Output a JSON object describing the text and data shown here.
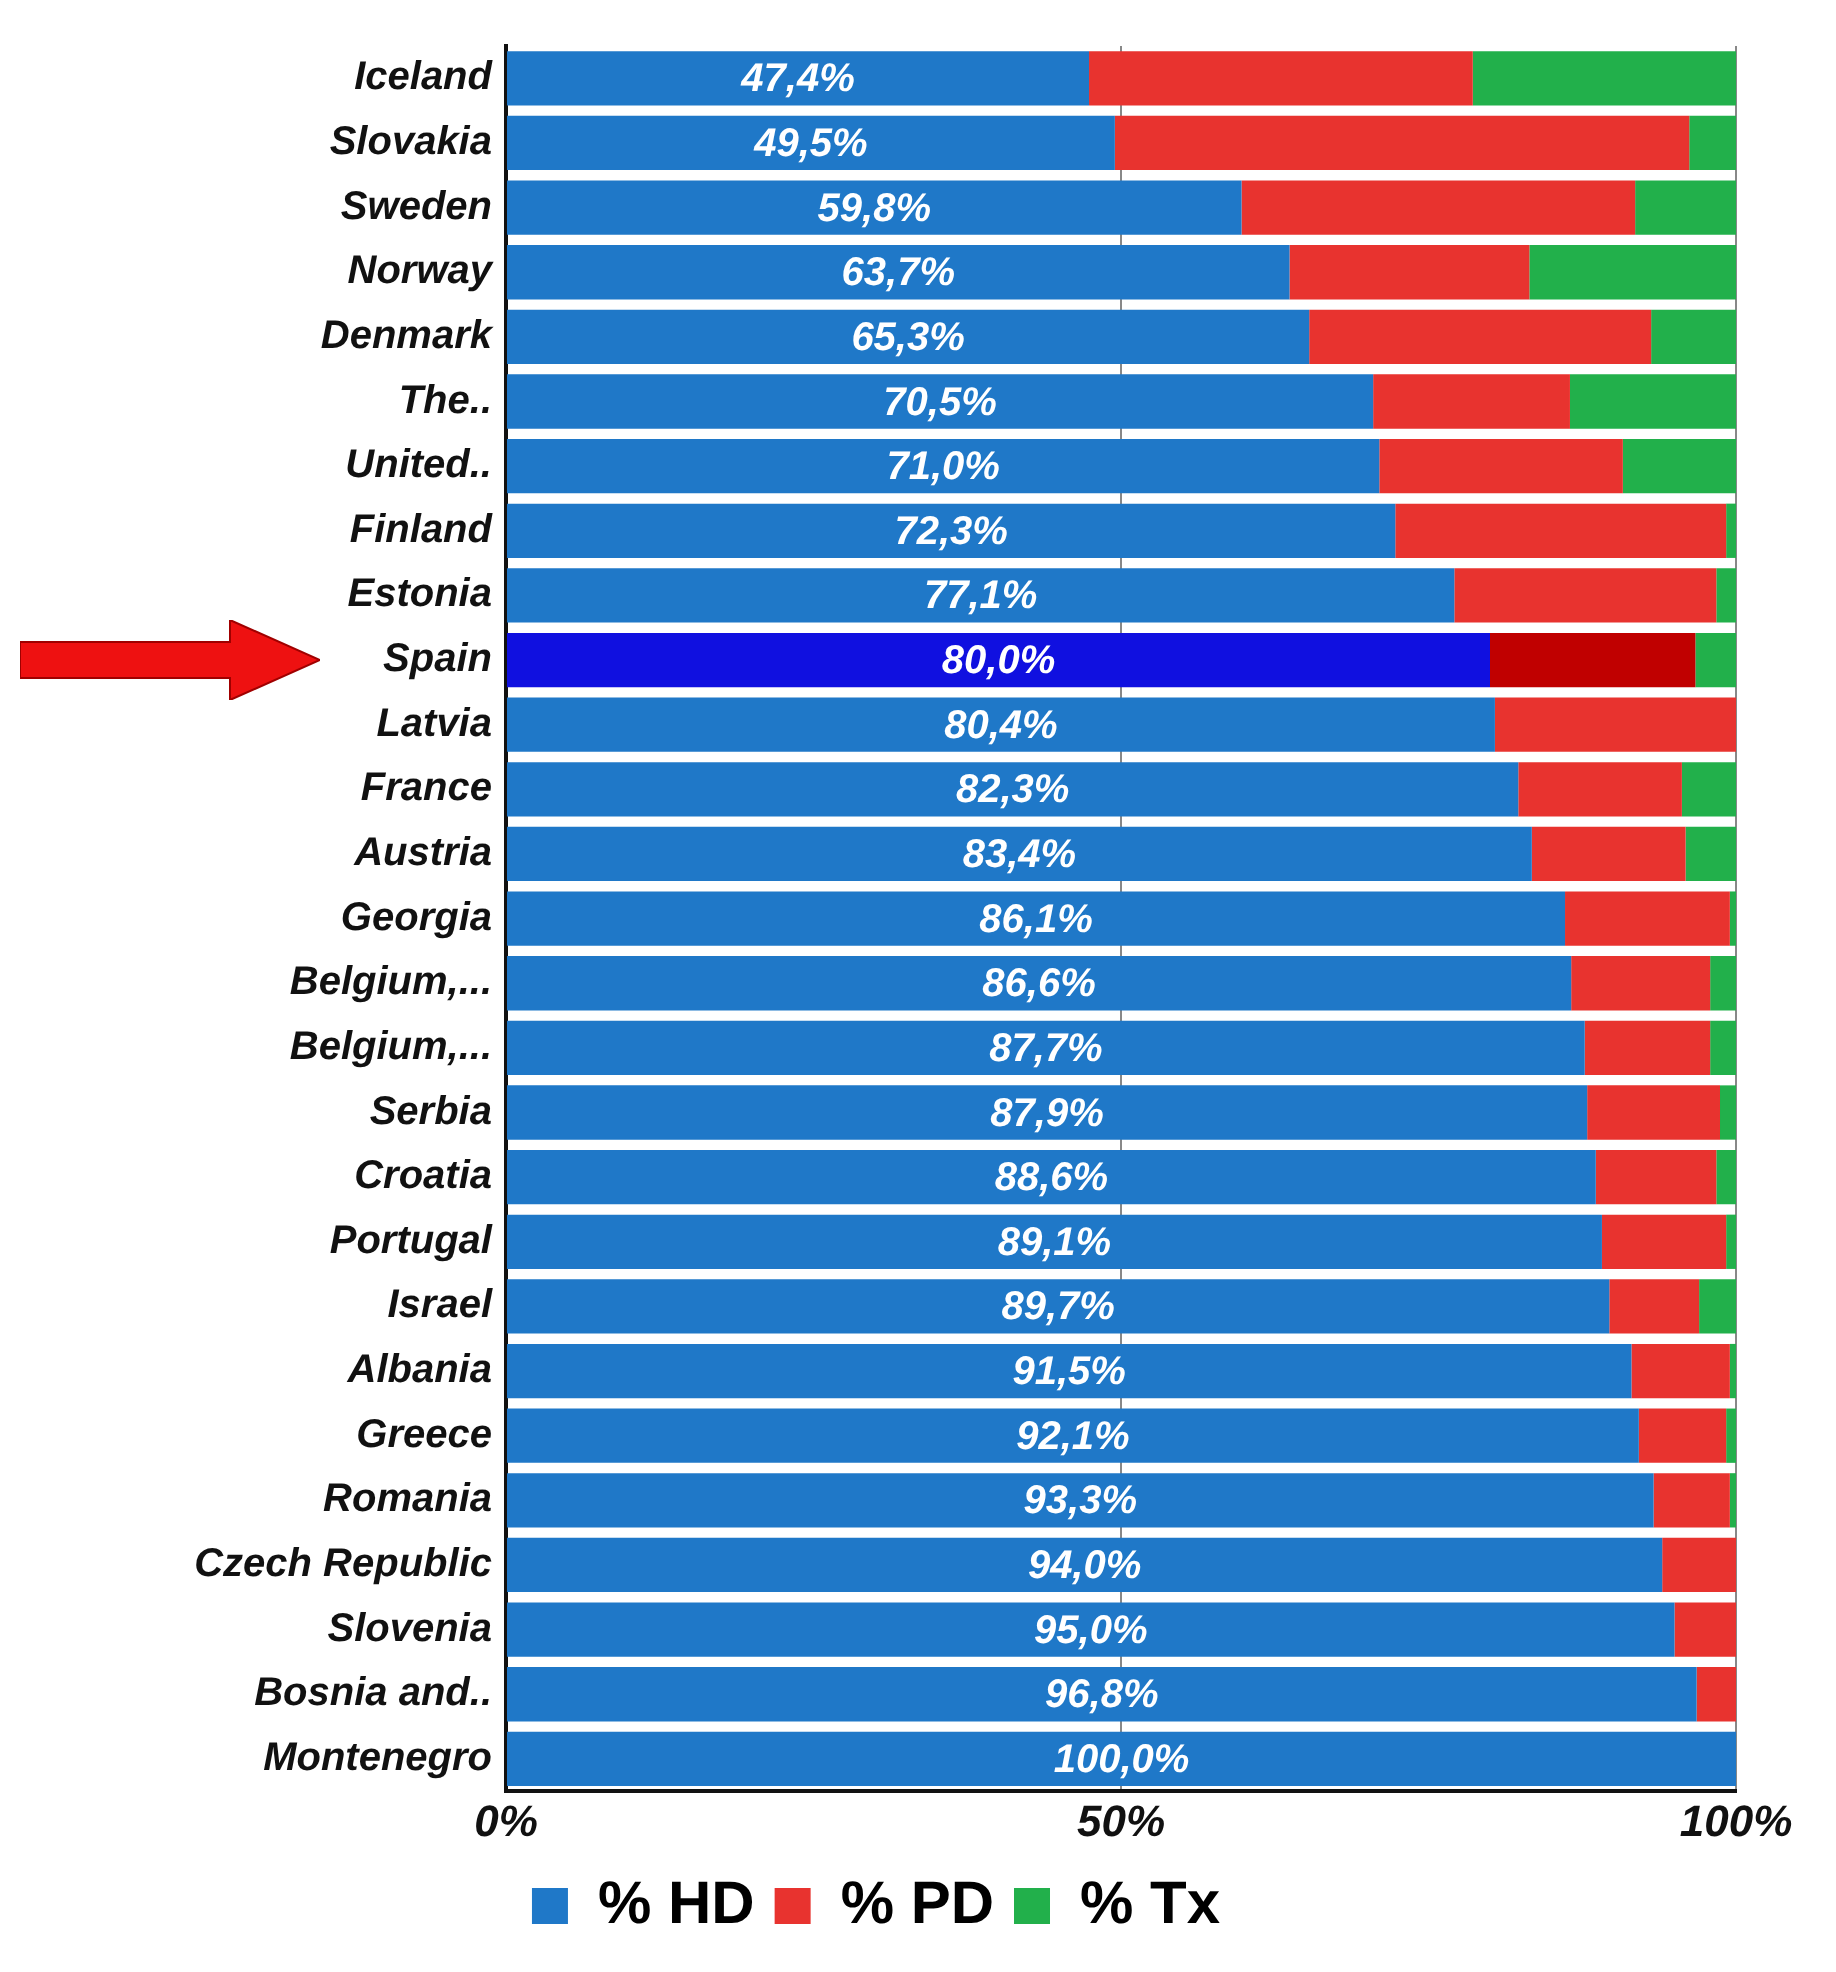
{
  "chart_data": {
    "type": "bar",
    "orientation": "horizontal",
    "stacked": true,
    "categories": [
      "Iceland",
      "Slovakia",
      "Sweden",
      "Norway",
      "Denmark",
      "The..",
      "United..",
      "Finland",
      "Estonia",
      "Spain",
      "Latvia",
      "France",
      "Austria",
      "Georgia",
      "Belgium,...",
      "Belgium,...",
      "Serbia",
      "Croatia",
      "Portugal",
      "Israel",
      "Albania",
      "Greece",
      "Romania",
      "Czech Republic",
      "Slovenia",
      "Bosnia and..",
      "Montenegro"
    ],
    "series": [
      {
        "name": "% HD",
        "color": "#1f78c8",
        "colors": [
          "#1f78c8",
          "#1f78c8",
          "#1f78c8",
          "#1f78c8",
          "#1f78c8",
          "#1f78c8",
          "#1f78c8",
          "#1f78c8",
          "#1f78c8",
          "#1010e0",
          "#1f78c8",
          "#1f78c8",
          "#1f78c8",
          "#1f78c8",
          "#1f78c8",
          "#1f78c8",
          "#1f78c8",
          "#1f78c8",
          "#1f78c8",
          "#1f78c8",
          "#1f78c8",
          "#1f78c8",
          "#1f78c8",
          "#1f78c8",
          "#1f78c8",
          "#1f78c8",
          "#1f78c8"
        ],
        "values": [
          47.4,
          49.5,
          59.8,
          63.7,
          65.3,
          70.5,
          71.0,
          72.3,
          77.1,
          80.0,
          80.4,
          82.3,
          83.4,
          86.1,
          86.6,
          87.7,
          87.9,
          88.6,
          89.1,
          89.7,
          91.5,
          92.1,
          93.3,
          94.0,
          95.0,
          96.8,
          100.0
        ],
        "value_labels": [
          "47,4%",
          "49,5%",
          "59,8%",
          "63,7%",
          "65,3%",
          "70,5%",
          "71,0%",
          "72,3%",
          "77,1%",
          "80,0%",
          "80,4%",
          "82,3%",
          "83,4%",
          "86,1%",
          "86,6%",
          "87,7%",
          "87,9%",
          "88,6%",
          "89,1%",
          "89,7%",
          "91,5%",
          "92,1%",
          "93,3%",
          "94,0%",
          "95,0%",
          "96,8%",
          "100,0%"
        ]
      },
      {
        "name": "% PD",
        "color": "#e8332f",
        "colors": [
          "#e8332f",
          "#e8332f",
          "#e8332f",
          "#e8332f",
          "#e8332f",
          "#e8332f",
          "#e8332f",
          "#e8332f",
          "#e8332f",
          "#c00000",
          "#e8332f",
          "#e8332f",
          "#e8332f",
          "#e8332f",
          "#e8332f",
          "#e8332f",
          "#e8332f",
          "#e8332f",
          "#e8332f",
          "#e8332f",
          "#e8332f",
          "#e8332f",
          "#e8332f",
          "#e8332f",
          "#e8332f",
          "#e8332f",
          "#e8332f"
        ],
        "values": [
          31.2,
          46.7,
          32.0,
          19.5,
          27.8,
          16.0,
          19.8,
          26.9,
          21.3,
          16.7,
          19.6,
          13.3,
          12.5,
          13.4,
          11.3,
          10.2,
          10.8,
          9.8,
          10.1,
          7.3,
          8.0,
          7.1,
          6.2,
          6.0,
          5.0,
          3.2,
          0
        ]
      },
      {
        "name": "% Tx",
        "color": "#22b04b",
        "values": [
          21.4,
          3.8,
          8.2,
          16.8,
          6.9,
          13.5,
          9.2,
          0.8,
          1.6,
          3.3,
          0,
          4.4,
          4.1,
          0.5,
          2.1,
          2.1,
          1.3,
          1.6,
          0.8,
          3.0,
          0.5,
          0.8,
          0.5,
          0,
          0,
          0,
          0
        ]
      }
    ],
    "xlim": [
      0,
      100
    ],
    "xticks": [
      {
        "value": 0,
        "label": "0%"
      },
      {
        "value": 50,
        "label": "50%"
      },
      {
        "value": 100,
        "label": "100%"
      }
    ],
    "grid": "x",
    "legend": "bottom"
  }
}
